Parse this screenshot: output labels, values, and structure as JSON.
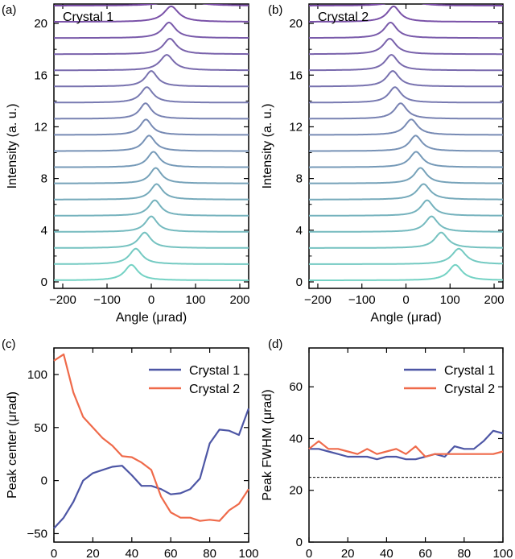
{
  "figure": {
    "panels": [
      "(a)",
      "(b)",
      "(c)",
      "(d)"
    ]
  },
  "chart_data": [
    {
      "id": "a",
      "type": "line",
      "panel_label": "(a)",
      "title": "Crystal 1",
      "xlabel": "Angle (μrad)",
      "ylabel": "Intensity (a. u.)",
      "xlim": [
        -220,
        220
      ],
      "ylim": [
        -0.5,
        21.5
      ],
      "xticks": [
        -200,
        -100,
        0,
        100,
        200
      ],
      "xtick_labels": [
        "−200",
        "−100",
        "0",
        "100",
        "200"
      ],
      "yticks": [
        0,
        4,
        8,
        12,
        16,
        20
      ],
      "yticks_minor": [
        2,
        6,
        10,
        14,
        18
      ],
      "peak_fwhm": [
        36,
        35,
        34,
        33,
        33,
        33,
        32,
        33,
        33,
        32,
        32,
        34,
        33,
        37,
        36,
        36,
        40,
        43
      ],
      "trace_offsets": [
        0,
        1.25,
        2.5,
        3.75,
        5,
        6.25,
        7.5,
        8.75,
        10,
        11.25,
        12.5,
        13.75,
        15,
        16.25,
        17.5,
        18.75,
        20,
        21.25
      ],
      "peak_centers": [
        -45,
        -35,
        -15,
        0,
        8,
        12,
        10,
        5,
        -5,
        -12,
        -13,
        -10,
        0,
        35,
        42,
        40,
        45,
        65
      ],
      "peak_height": 1.2,
      "baseline": 0.12,
      "color_start": "#74d2c4",
      "color_end": "#7a4aa6"
    },
    {
      "id": "b",
      "type": "line",
      "panel_label": "(b)",
      "title": "Crystal 2",
      "xlabel": "Angle (μrad)",
      "ylabel": "Intensity (a. u.)",
      "xlim": [
        -220,
        220
      ],
      "ylim": [
        -0.5,
        21.5
      ],
      "xticks": [
        -200,
        -100,
        0,
        100,
        200
      ],
      "xtick_labels": [
        "−200",
        "−100",
        "0",
        "100",
        "200"
      ],
      "yticks": [
        0,
        4,
        8,
        12,
        16,
        20
      ],
      "yticks_minor": [
        2,
        6,
        10,
        14,
        18
      ],
      "peak_fwhm": [
        37,
        38,
        36,
        35,
        34,
        36,
        34,
        35,
        34,
        35,
        34,
        34,
        35,
        35,
        36,
        35,
        35,
        35
      ],
      "trace_offsets": [
        0,
        1.25,
        2.5,
        3.75,
        5,
        6.25,
        7.5,
        8.75,
        10,
        11.25,
        12.5,
        13.75,
        15,
        16.25,
        17.5,
        18.75,
        20,
        21.25
      ],
      "peak_centers": [
        112,
        120,
        80,
        58,
        48,
        40,
        33,
        23,
        22,
        12,
        -12,
        -25,
        -30,
        -33,
        -37,
        -35,
        -28,
        -5
      ],
      "peak_height": 1.2,
      "baseline": 0.12,
      "color_start": "#74d2c4",
      "color_end": "#7a4aa6"
    },
    {
      "id": "c",
      "type": "line",
      "panel_label": "(c)",
      "xlabel": "Position on crystal (mm)",
      "ylabel": "Peak center (μrad)",
      "xlim": [
        0,
        100
      ],
      "ylim": [
        -58,
        125
      ],
      "xticks": [
        0,
        20,
        40,
        60,
        80,
        100
      ],
      "xtick_labels": [
        "0",
        "20",
        "40",
        "60",
        "80",
        "100"
      ],
      "yticks": [
        -50,
        0,
        50,
        100
      ],
      "ytick_labels": [
        "−50",
        "0",
        "50",
        "100"
      ],
      "legend_position": "top-right",
      "series": [
        {
          "name": "Crystal 1",
          "color": "#4d56a5",
          "x": [
            0,
            5,
            10,
            15,
            20,
            25,
            30,
            35,
            40,
            45,
            50,
            55,
            60,
            65,
            70,
            75,
            80,
            85,
            90,
            95,
            100
          ],
          "values": [
            -45,
            -35,
            -20,
            0,
            7,
            10,
            13,
            14,
            5,
            -5,
            -5,
            -8,
            -13,
            -12,
            -8,
            2,
            35,
            48,
            47,
            43,
            68
          ]
        },
        {
          "name": "Crystal 2",
          "color": "#ef6a4a",
          "x": [
            0,
            5,
            10,
            15,
            20,
            25,
            30,
            35,
            40,
            45,
            50,
            55,
            60,
            65,
            70,
            75,
            80,
            85,
            90,
            95,
            100
          ],
          "values": [
            113,
            119,
            83,
            60,
            50,
            40,
            33,
            23,
            22,
            17,
            10,
            -15,
            -30,
            -35,
            -35,
            -38,
            -37,
            -38,
            -28,
            -22,
            -8
          ]
        }
      ]
    },
    {
      "id": "d",
      "type": "line",
      "panel_label": "(d)",
      "xlabel": "Position on crystal (mm)",
      "ylabel": "Peak FWHM (μrad)",
      "xlim": [
        0,
        100
      ],
      "ylim": [
        0,
        75
      ],
      "xticks": [
        0,
        20,
        40,
        60,
        80,
        100
      ],
      "xtick_labels": [
        "0",
        "20",
        "40",
        "60",
        "80",
        "100"
      ],
      "yticks": [
        0,
        20,
        40,
        60
      ],
      "ytick_labels": [
        "0",
        "20",
        "40",
        "60"
      ],
      "legend_position": "top-right",
      "reference_line": 25,
      "series": [
        {
          "name": "Crystal 1",
          "color": "#4d56a5",
          "x": [
            0,
            5,
            10,
            15,
            20,
            25,
            30,
            35,
            40,
            45,
            50,
            55,
            60,
            65,
            70,
            75,
            80,
            85,
            90,
            95,
            100
          ],
          "values": [
            36,
            36,
            35,
            34,
            33,
            33,
            33,
            32,
            33,
            33,
            32,
            32,
            33,
            34,
            33,
            37,
            36,
            36,
            39,
            43,
            42
          ]
        },
        {
          "name": "Crystal 2",
          "color": "#ef6a4a",
          "x": [
            0,
            5,
            10,
            15,
            20,
            25,
            30,
            35,
            40,
            45,
            50,
            55,
            60,
            65,
            70,
            75,
            80,
            85,
            90,
            95,
            100
          ],
          "values": [
            36,
            39,
            36,
            36,
            35,
            34,
            36,
            34,
            35,
            36,
            34,
            37,
            33,
            34,
            34,
            34,
            34,
            34,
            34,
            34,
            35
          ]
        }
      ]
    }
  ]
}
